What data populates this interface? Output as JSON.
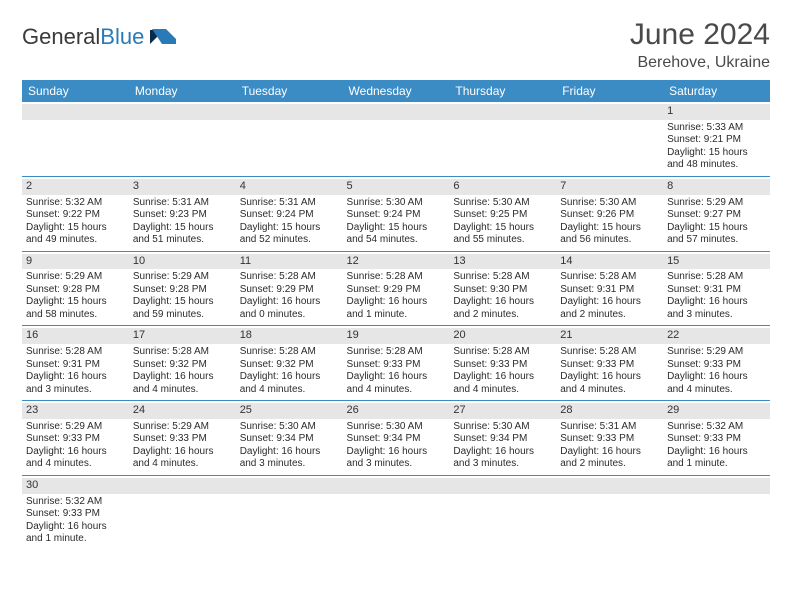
{
  "brand": {
    "name1": "General",
    "name2": "Blue"
  },
  "title": "June 2024",
  "location": "Berehove, Ukraine",
  "colors": {
    "header_bg": "#3b8bc4",
    "header_text": "#ffffff",
    "daynum_bg": "#e6e6e6",
    "row_border": "#3b8bc4",
    "text": "#2b2b2b",
    "title_text": "#4a4a4a"
  },
  "fonts": {
    "title_size": 30,
    "location_size": 16,
    "dayhead_size": 12,
    "cell_size": 10
  },
  "day_headers": [
    "Sunday",
    "Monday",
    "Tuesday",
    "Wednesday",
    "Thursday",
    "Friday",
    "Saturday"
  ],
  "weeks": [
    [
      null,
      null,
      null,
      null,
      null,
      null,
      {
        "n": "1",
        "sunrise": "5:33 AM",
        "sunset": "9:21 PM",
        "daylight": "15 hours and 48 minutes."
      }
    ],
    [
      {
        "n": "2",
        "sunrise": "5:32 AM",
        "sunset": "9:22 PM",
        "daylight": "15 hours and 49 minutes."
      },
      {
        "n": "3",
        "sunrise": "5:31 AM",
        "sunset": "9:23 PM",
        "daylight": "15 hours and 51 minutes."
      },
      {
        "n": "4",
        "sunrise": "5:31 AM",
        "sunset": "9:24 PM",
        "daylight": "15 hours and 52 minutes."
      },
      {
        "n": "5",
        "sunrise": "5:30 AM",
        "sunset": "9:24 PM",
        "daylight": "15 hours and 54 minutes."
      },
      {
        "n": "6",
        "sunrise": "5:30 AM",
        "sunset": "9:25 PM",
        "daylight": "15 hours and 55 minutes."
      },
      {
        "n": "7",
        "sunrise": "5:30 AM",
        "sunset": "9:26 PM",
        "daylight": "15 hours and 56 minutes."
      },
      {
        "n": "8",
        "sunrise": "5:29 AM",
        "sunset": "9:27 PM",
        "daylight": "15 hours and 57 minutes."
      }
    ],
    [
      {
        "n": "9",
        "sunrise": "5:29 AM",
        "sunset": "9:28 PM",
        "daylight": "15 hours and 58 minutes."
      },
      {
        "n": "10",
        "sunrise": "5:29 AM",
        "sunset": "9:28 PM",
        "daylight": "15 hours and 59 minutes."
      },
      {
        "n": "11",
        "sunrise": "5:28 AM",
        "sunset": "9:29 PM",
        "daylight": "16 hours and 0 minutes."
      },
      {
        "n": "12",
        "sunrise": "5:28 AM",
        "sunset": "9:29 PM",
        "daylight": "16 hours and 1 minute."
      },
      {
        "n": "13",
        "sunrise": "5:28 AM",
        "sunset": "9:30 PM",
        "daylight": "16 hours and 2 minutes."
      },
      {
        "n": "14",
        "sunrise": "5:28 AM",
        "sunset": "9:31 PM",
        "daylight": "16 hours and 2 minutes."
      },
      {
        "n": "15",
        "sunrise": "5:28 AM",
        "sunset": "9:31 PM",
        "daylight": "16 hours and 3 minutes."
      }
    ],
    [
      {
        "n": "16",
        "sunrise": "5:28 AM",
        "sunset": "9:31 PM",
        "daylight": "16 hours and 3 minutes."
      },
      {
        "n": "17",
        "sunrise": "5:28 AM",
        "sunset": "9:32 PM",
        "daylight": "16 hours and 4 minutes."
      },
      {
        "n": "18",
        "sunrise": "5:28 AM",
        "sunset": "9:32 PM",
        "daylight": "16 hours and 4 minutes."
      },
      {
        "n": "19",
        "sunrise": "5:28 AM",
        "sunset": "9:33 PM",
        "daylight": "16 hours and 4 minutes."
      },
      {
        "n": "20",
        "sunrise": "5:28 AM",
        "sunset": "9:33 PM",
        "daylight": "16 hours and 4 minutes."
      },
      {
        "n": "21",
        "sunrise": "5:28 AM",
        "sunset": "9:33 PM",
        "daylight": "16 hours and 4 minutes."
      },
      {
        "n": "22",
        "sunrise": "5:29 AM",
        "sunset": "9:33 PM",
        "daylight": "16 hours and 4 minutes."
      }
    ],
    [
      {
        "n": "23",
        "sunrise": "5:29 AM",
        "sunset": "9:33 PM",
        "daylight": "16 hours and 4 minutes."
      },
      {
        "n": "24",
        "sunrise": "5:29 AM",
        "sunset": "9:33 PM",
        "daylight": "16 hours and 4 minutes."
      },
      {
        "n": "25",
        "sunrise": "5:30 AM",
        "sunset": "9:34 PM",
        "daylight": "16 hours and 3 minutes."
      },
      {
        "n": "26",
        "sunrise": "5:30 AM",
        "sunset": "9:34 PM",
        "daylight": "16 hours and 3 minutes."
      },
      {
        "n": "27",
        "sunrise": "5:30 AM",
        "sunset": "9:34 PM",
        "daylight": "16 hours and 3 minutes."
      },
      {
        "n": "28",
        "sunrise": "5:31 AM",
        "sunset": "9:33 PM",
        "daylight": "16 hours and 2 minutes."
      },
      {
        "n": "29",
        "sunrise": "5:32 AM",
        "sunset": "9:33 PM",
        "daylight": "16 hours and 1 minute."
      }
    ],
    [
      {
        "n": "30",
        "sunrise": "5:32 AM",
        "sunset": "9:33 PM",
        "daylight": "16 hours and 1 minute."
      },
      null,
      null,
      null,
      null,
      null,
      null
    ]
  ],
  "labels": {
    "sunrise": "Sunrise:",
    "sunset": "Sunset:",
    "daylight": "Daylight:"
  }
}
